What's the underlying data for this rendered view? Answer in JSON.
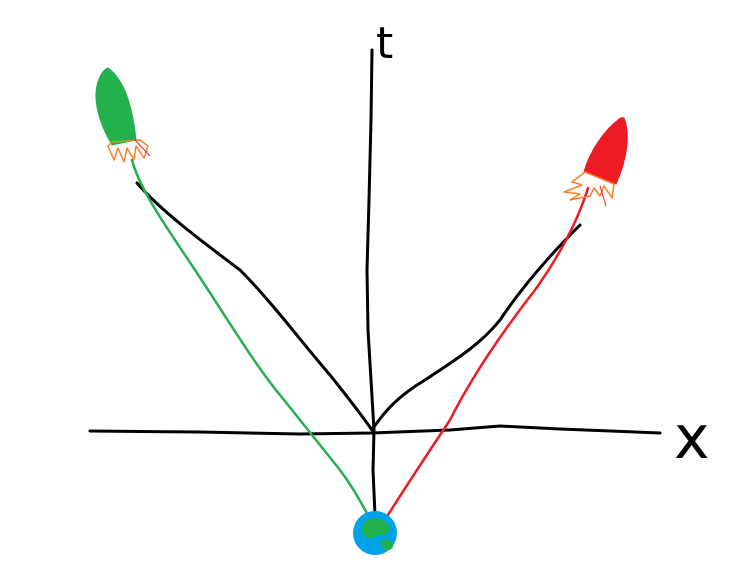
{
  "diagram": {
    "axes": {
      "time_label": "t",
      "space_label": "x"
    },
    "objects": [
      {
        "name": "earth",
        "icon": "earth-icon"
      },
      {
        "name": "green-rocket",
        "icon": "rocket-icon",
        "color": "#22b14c"
      },
      {
        "name": "red-rocket",
        "icon": "rocket-icon",
        "color": "#ed1c24"
      }
    ],
    "colors": {
      "ink": "#000000",
      "green_worldline": "#22b14c",
      "red_worldline": "#ed1c24",
      "flame": "#ff7f27",
      "earth_ocean": "#00a2e8",
      "earth_land": "#22b14c"
    }
  }
}
